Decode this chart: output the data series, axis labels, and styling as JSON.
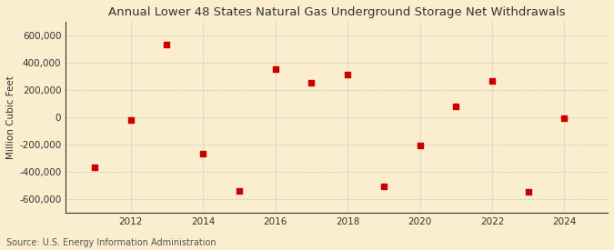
{
  "title": "Annual Lower 48 States Natural Gas Underground Storage Net Withdrawals",
  "ylabel": "Million Cubic Feet",
  "source": "Source: U.S. Energy Information Administration",
  "years": [
    2011,
    2012,
    2013,
    2014,
    2015,
    2016,
    2017,
    2018,
    2019,
    2020,
    2021,
    2022,
    2023,
    2024
  ],
  "values": [
    -370000,
    -20000,
    530000,
    -265000,
    -540000,
    350000,
    250000,
    310000,
    -510000,
    -210000,
    80000,
    265000,
    -545000,
    -10000
  ],
  "marker_color": "#cc0000",
  "marker_size": 5,
  "background_color": "#faeece",
  "grid_color": "#cccccc",
  "ylim": [
    -700000,
    700000
  ],
  "yticks": [
    -600000,
    -400000,
    -200000,
    0,
    200000,
    400000,
    600000
  ],
  "xticks": [
    2012,
    2014,
    2016,
    2018,
    2020,
    2022,
    2024
  ],
  "xlim": [
    2010.2,
    2025.2
  ],
  "title_fontsize": 9.5,
  "label_fontsize": 7.5,
  "tick_fontsize": 7.5,
  "source_fontsize": 7
}
